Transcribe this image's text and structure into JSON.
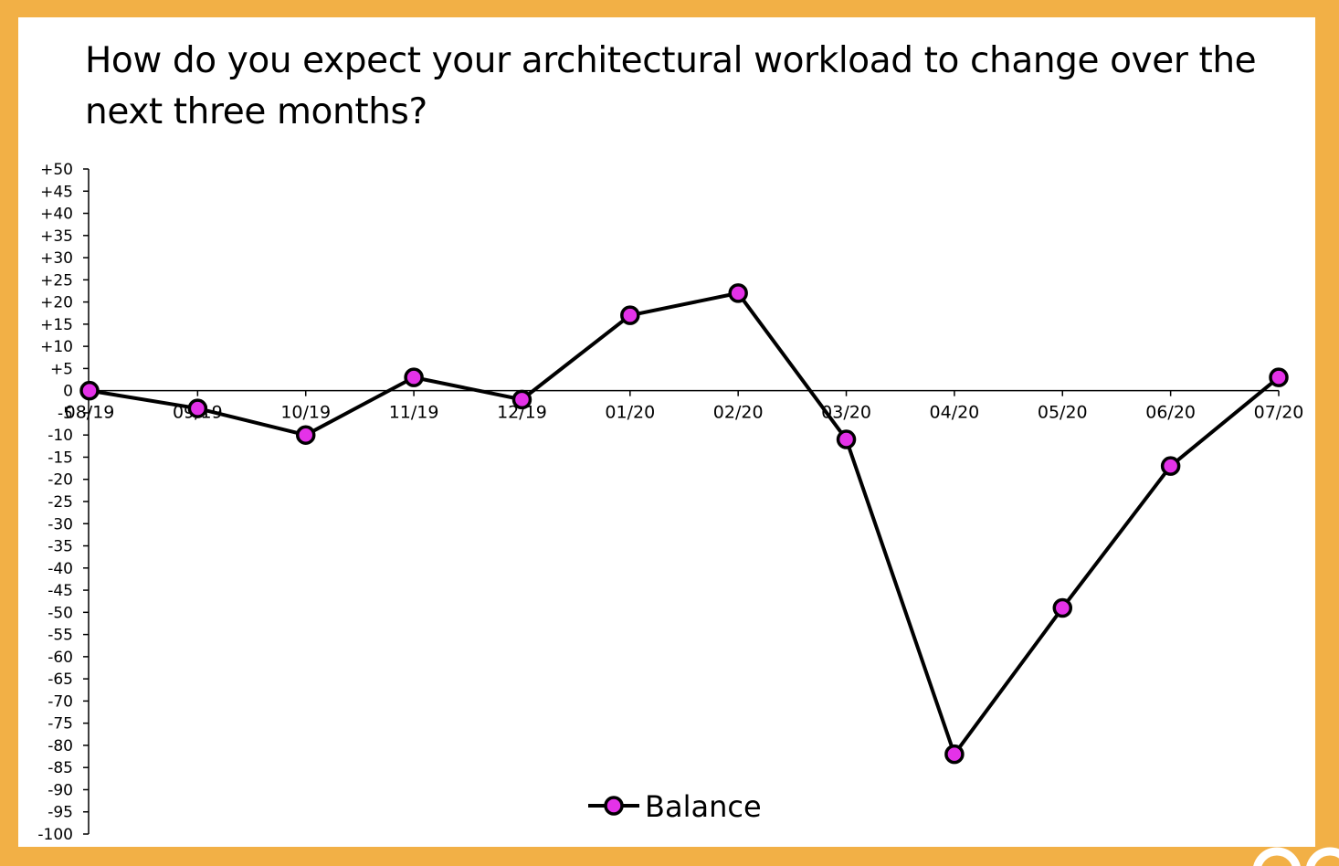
{
  "chart_data": {
    "type": "line",
    "title": "How do you expect your architectural workload to change over the next three months?",
    "categories": [
      "08/19",
      "09/19",
      "10/19",
      "11/19",
      "12/19",
      "01/20",
      "02/20",
      "03/20",
      "04/20",
      "05/20",
      "06/20",
      "07/20"
    ],
    "series": [
      {
        "name": "Balance",
        "values": [
          0,
          -4,
          -10,
          3,
          -2,
          17,
          22,
          -11,
          -82,
          -49,
          -17,
          3
        ]
      }
    ],
    "ylim": [
      -100,
      50
    ],
    "ytick_step": 5,
    "ytick_labels": [
      "+50",
      "+45",
      "+40",
      "+35",
      "+30",
      "+25",
      "+20",
      "+15",
      "+10",
      "+5",
      "0",
      "-5",
      "-10",
      "-15",
      "-20",
      "-25",
      "-30",
      "-35",
      "-40",
      "-45",
      "-50",
      "-55",
      "-60",
      "-65",
      "-70",
      "-75",
      "-80",
      "-85",
      "-90",
      "-95",
      "-100"
    ],
    "xlabel": "",
    "ylabel": "",
    "grid": false,
    "legend": "bottom",
    "colors": {
      "line": "#000000",
      "marker_fill": "#e432e8",
      "background": "#f2b046",
      "panel": "#ffffff"
    }
  }
}
